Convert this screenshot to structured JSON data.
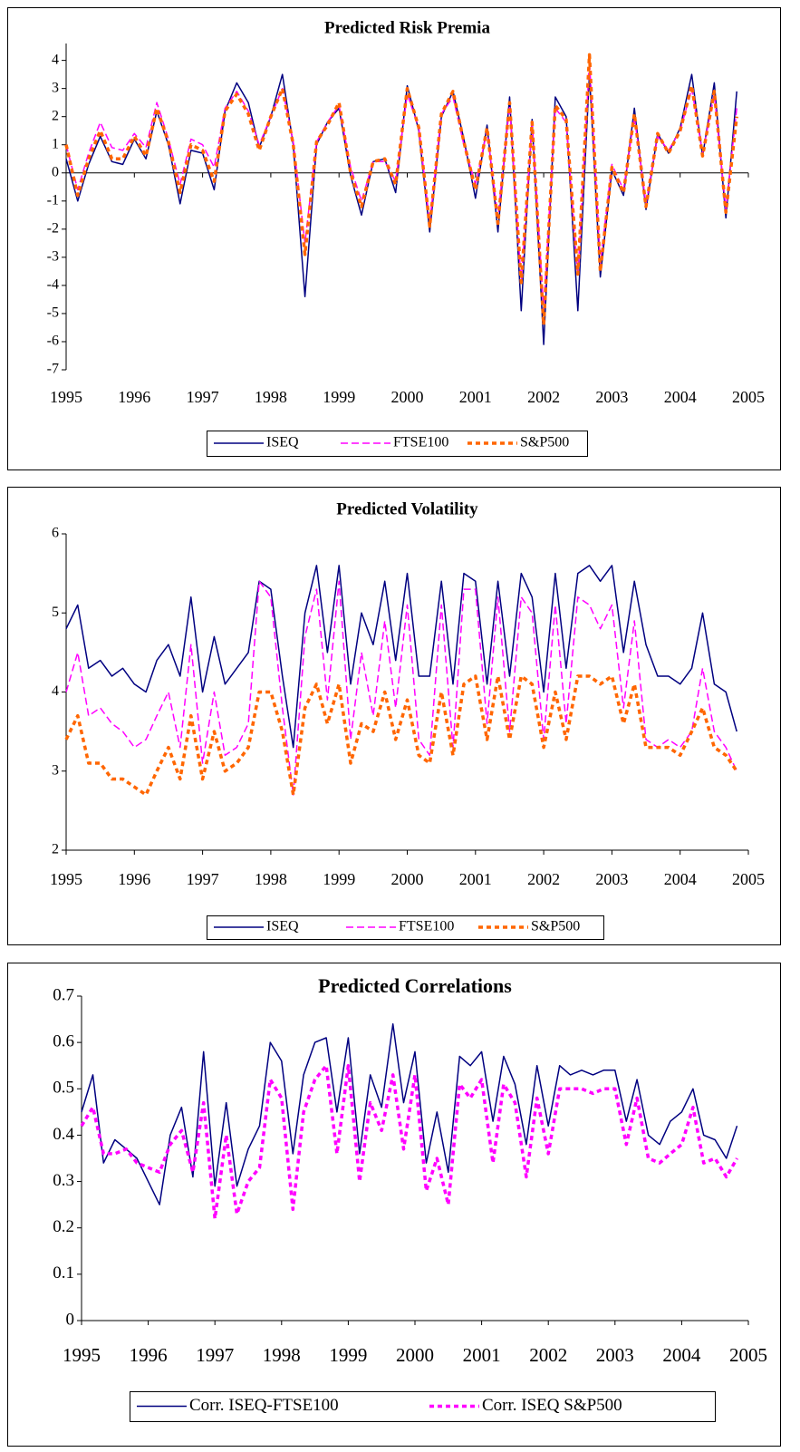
{
  "chart_data": [
    {
      "type": "line",
      "title": "Predicted Risk Premia",
      "x": [
        1995,
        1995.17,
        1995.33,
        1995.5,
        1995.67,
        1995.83,
        1996,
        1996.17,
        1996.33,
        1996.5,
        1996.67,
        1996.83,
        1997,
        1997.17,
        1997.33,
        1997.5,
        1997.67,
        1997.83,
        1998,
        1998.17,
        1998.33,
        1998.5,
        1998.67,
        1998.83,
        1999,
        1999.17,
        1999.33,
        1999.5,
        1999.67,
        1999.83,
        2000,
        2000.17,
        2000.33,
        2000.5,
        2000.67,
        2000.83,
        2001,
        2001.17,
        2001.33,
        2001.5,
        2001.67,
        2001.83,
        2002,
        2002.17,
        2002.33,
        2002.5,
        2002.67,
        2002.83,
        2003,
        2003.17,
        2003.33,
        2003.5,
        2003.67,
        2003.83,
        2004,
        2004.17,
        2004.33,
        2004.5,
        2004.67,
        2004.83
      ],
      "series": [
        {
          "name": "ISEQ",
          "color": "#000080",
          "line_style": "solid",
          "values": [
            0.5,
            -1.0,
            0.3,
            1.3,
            0.4,
            0.3,
            1.2,
            0.5,
            2.2,
            1.0,
            -1.1,
            0.8,
            0.7,
            -0.6,
            2.2,
            3.2,
            2.5,
            0.9,
            2.0,
            3.5,
            1.0,
            -4.4,
            1.0,
            1.8,
            2.3,
            -0.1,
            -1.5,
            0.4,
            0.5,
            -0.7,
            3.1,
            1.5,
            -2.1,
            2.0,
            2.9,
            1.2,
            -0.9,
            1.7,
            -2.1,
            2.7,
            -4.9,
            1.9,
            -6.1,
            2.7,
            2.0,
            -4.9,
            3.5,
            -3.7,
            0.1,
            -0.8,
            2.3,
            -1.3,
            1.4,
            0.7,
            1.6,
            3.5,
            0.6,
            3.2,
            -1.6,
            2.9
          ]
        },
        {
          "name": "FTSE100",
          "color": "#ff00ff",
          "line_style": "dashed",
          "values": [
            1.0,
            -0.6,
            0.7,
            1.8,
            0.9,
            0.8,
            1.4,
            0.9,
            2.5,
            1.2,
            -0.4,
            1.2,
            1.0,
            0.2,
            2.3,
            2.9,
            2.2,
            1.0,
            2.0,
            3.0,
            1.1,
            -2.5,
            1.1,
            1.8,
            2.4,
            0.2,
            -1.0,
            0.4,
            0.4,
            -0.3,
            2.8,
            1.6,
            -1.8,
            2.1,
            2.7,
            1.0,
            -0.4,
            1.5,
            -1.6,
            2.4,
            -3.9,
            1.8,
            -4.9,
            2.3,
            1.8,
            -3.7,
            4.0,
            -3.2,
            0.3,
            -0.6,
            2.0,
            -1.1,
            1.3,
            0.8,
            1.5,
            3.0,
            0.7,
            2.8,
            -1.3,
            2.3
          ]
        },
        {
          "name": "S&P500",
          "color": "#ff6600",
          "line_style": "dotted",
          "values": [
            1.0,
            -0.8,
            0.5,
            1.5,
            0.5,
            0.5,
            1.3,
            0.6,
            2.3,
            1.1,
            -0.7,
            1.0,
            0.8,
            -0.3,
            2.2,
            2.8,
            2.1,
            0.8,
            2.0,
            3.0,
            1.0,
            -2.9,
            1.1,
            1.7,
            2.5,
            0.0,
            -1.2,
            0.4,
            0.5,
            -0.4,
            3.0,
            1.6,
            -1.9,
            2.1,
            2.9,
            1.1,
            -0.6,
            1.6,
            -1.8,
            2.5,
            -3.9,
            1.8,
            -5.4,
            2.4,
            1.9,
            -3.6,
            4.2,
            -3.5,
            0.2,
            -0.7,
            2.1,
            -1.2,
            1.4,
            0.7,
            1.5,
            3.1,
            0.6,
            2.9,
            -1.4,
            2.0
          ]
        }
      ],
      "xlim": [
        1995,
        2005
      ],
      "xticks": [
        1995,
        1996,
        1997,
        1998,
        1999,
        2000,
        2001,
        2002,
        2003,
        2004,
        2005
      ],
      "ylim": [
        -7,
        4.6
      ],
      "yticks": [
        -7,
        -6,
        -5,
        -4,
        -3,
        -2,
        -1,
        0,
        1,
        2,
        3,
        4
      ],
      "grid": false,
      "legend": "bottom"
    },
    {
      "type": "line",
      "title": "Predicted Volatility",
      "x": [
        1995,
        1995.17,
        1995.33,
        1995.5,
        1995.67,
        1995.83,
        1996,
        1996.17,
        1996.33,
        1996.5,
        1996.67,
        1996.83,
        1997,
        1997.17,
        1997.33,
        1997.5,
        1997.67,
        1997.83,
        1998,
        1998.17,
        1998.33,
        1998.5,
        1998.67,
        1998.83,
        1999,
        1999.17,
        1999.33,
        1999.5,
        1999.67,
        1999.83,
        2000,
        2000.17,
        2000.33,
        2000.5,
        2000.67,
        2000.83,
        2001,
        2001.17,
        2001.33,
        2001.5,
        2001.67,
        2001.83,
        2002,
        2002.17,
        2002.33,
        2002.5,
        2002.67,
        2002.83,
        2003,
        2003.17,
        2003.33,
        2003.5,
        2003.67,
        2003.83,
        2004,
        2004.17,
        2004.33,
        2004.5,
        2004.67,
        2004.83
      ],
      "series": [
        {
          "name": "ISEQ",
          "color": "#000080",
          "line_style": "solid",
          "values": [
            4.8,
            5.1,
            4.3,
            4.4,
            4.2,
            4.3,
            4.1,
            4.0,
            4.4,
            4.6,
            4.2,
            5.2,
            4.0,
            4.7,
            4.1,
            4.3,
            4.5,
            5.4,
            5.3,
            4.2,
            3.3,
            5.0,
            5.6,
            4.5,
            5.6,
            4.1,
            5.0,
            4.6,
            5.4,
            4.4,
            5.5,
            4.2,
            4.2,
            5.4,
            4.1,
            5.5,
            5.4,
            4.1,
            5.4,
            4.2,
            5.5,
            5.2,
            4.0,
            5.5,
            4.3,
            5.5,
            5.6,
            5.4,
            5.6,
            4.5,
            5.4,
            4.6,
            4.2,
            4.2,
            4.1,
            4.3,
            5.0,
            4.1,
            4.0,
            3.5
          ]
        },
        {
          "name": "FTSE100",
          "color": "#ff00ff",
          "line_style": "dashed",
          "values": [
            4.0,
            4.5,
            3.7,
            3.8,
            3.6,
            3.5,
            3.3,
            3.4,
            3.7,
            4.0,
            3.3,
            4.6,
            3.1,
            4.0,
            3.2,
            3.3,
            3.6,
            5.4,
            5.2,
            3.8,
            2.7,
            4.7,
            5.3,
            3.9,
            5.4,
            3.4,
            4.5,
            3.7,
            4.9,
            3.8,
            5.1,
            3.4,
            3.2,
            5.1,
            3.3,
            5.3,
            5.3,
            3.6,
            5.2,
            3.5,
            5.2,
            5.0,
            3.4,
            5.1,
            3.6,
            5.2,
            5.1,
            4.8,
            5.1,
            3.8,
            4.9,
            3.4,
            3.3,
            3.4,
            3.3,
            3.5,
            4.3,
            3.5,
            3.3,
            3.0
          ]
        },
        {
          "name": "S&P500",
          "color": "#ff6600",
          "line_style": "dotted",
          "values": [
            3.4,
            3.7,
            3.1,
            3.1,
            2.9,
            2.9,
            2.8,
            2.7,
            3.0,
            3.3,
            2.9,
            3.7,
            2.9,
            3.5,
            3.0,
            3.1,
            3.3,
            4.0,
            4.0,
            3.5,
            2.7,
            3.8,
            4.1,
            3.6,
            4.1,
            3.1,
            3.6,
            3.5,
            4.0,
            3.4,
            3.9,
            3.2,
            3.1,
            4.0,
            3.2,
            4.1,
            4.2,
            3.4,
            4.2,
            3.4,
            4.2,
            4.1,
            3.3,
            4.0,
            3.4,
            4.2,
            4.2,
            4.1,
            4.2,
            3.6,
            4.1,
            3.3,
            3.3,
            3.3,
            3.2,
            3.5,
            3.8,
            3.3,
            3.2,
            3.0
          ]
        }
      ],
      "xlim": [
        1995,
        2005
      ],
      "xticks": [
        1995,
        1996,
        1997,
        1998,
        1999,
        2000,
        2001,
        2002,
        2003,
        2004,
        2005
      ],
      "ylim": [
        2,
        6
      ],
      "yticks": [
        2,
        3,
        4,
        5,
        6
      ],
      "grid": false,
      "legend": "bottom"
    },
    {
      "type": "line",
      "title": "Predicted Correlations",
      "x": [
        1995,
        1995.17,
        1995.33,
        1995.5,
        1995.67,
        1995.83,
        1996,
        1996.17,
        1996.33,
        1996.5,
        1996.67,
        1996.83,
        1997,
        1997.17,
        1997.33,
        1997.5,
        1997.67,
        1997.83,
        1998,
        1998.17,
        1998.33,
        1998.5,
        1998.67,
        1998.83,
        1999,
        1999.17,
        1999.33,
        1999.5,
        1999.67,
        1999.83,
        2000,
        2000.17,
        2000.33,
        2000.5,
        2000.67,
        2000.83,
        2001,
        2001.17,
        2001.33,
        2001.5,
        2001.67,
        2001.83,
        2002,
        2002.17,
        2002.33,
        2002.5,
        2002.67,
        2002.83,
        2003,
        2003.17,
        2003.33,
        2003.5,
        2003.67,
        2003.83,
        2004,
        2004.17,
        2004.33,
        2004.5,
        2004.67,
        2004.83
      ],
      "series": [
        {
          "name": "Corr. ISEQ-FTSE100",
          "color": "#000080",
          "line_style": "solid",
          "values": [
            0.45,
            0.53,
            0.34,
            0.39,
            0.37,
            0.35,
            0.3,
            0.25,
            0.4,
            0.46,
            0.31,
            0.58,
            0.29,
            0.47,
            0.29,
            0.37,
            0.42,
            0.6,
            0.56,
            0.36,
            0.53,
            0.6,
            0.61,
            0.45,
            0.61,
            0.36,
            0.53,
            0.46,
            0.64,
            0.47,
            0.58,
            0.34,
            0.45,
            0.32,
            0.57,
            0.55,
            0.58,
            0.43,
            0.57,
            0.51,
            0.38,
            0.55,
            0.42,
            0.55,
            0.53,
            0.54,
            0.53,
            0.54,
            0.54,
            0.43,
            0.52,
            0.4,
            0.38,
            0.43,
            0.45,
            0.5,
            0.4,
            0.39,
            0.35,
            0.42
          ]
        },
        {
          "name": "Corr. ISEQ S&P500",
          "color": "#ff00ff",
          "line_style": "dotted",
          "values": [
            0.42,
            0.46,
            0.36,
            0.36,
            0.37,
            0.34,
            0.33,
            0.32,
            0.38,
            0.41,
            0.32,
            0.47,
            0.22,
            0.4,
            0.23,
            0.3,
            0.33,
            0.52,
            0.48,
            0.24,
            0.45,
            0.52,
            0.55,
            0.36,
            0.55,
            0.3,
            0.47,
            0.41,
            0.53,
            0.37,
            0.53,
            0.28,
            0.35,
            0.25,
            0.51,
            0.48,
            0.52,
            0.34,
            0.51,
            0.47,
            0.31,
            0.48,
            0.36,
            0.5,
            0.5,
            0.5,
            0.49,
            0.5,
            0.5,
            0.38,
            0.48,
            0.35,
            0.34,
            0.36,
            0.38,
            0.46,
            0.34,
            0.35,
            0.31,
            0.35
          ]
        }
      ],
      "xlim": [
        1995,
        2005
      ],
      "xticks": [
        1995,
        1996,
        1997,
        1998,
        1999,
        2000,
        2001,
        2002,
        2003,
        2004,
        2005
      ],
      "ylim": [
        0,
        0.7
      ],
      "yticks": [
        0,
        0.1,
        0.2,
        0.3,
        0.4,
        0.5,
        0.6,
        0.7
      ],
      "grid": false,
      "legend": "bottom"
    }
  ]
}
